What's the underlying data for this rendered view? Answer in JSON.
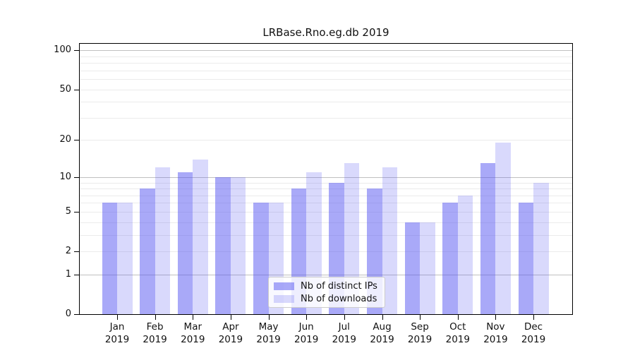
{
  "chart_data": {
    "type": "bar",
    "title": "LRBase.Rno.eg.db 2019",
    "categories": [
      "Jan",
      "Feb",
      "Mar",
      "Apr",
      "May",
      "Jun",
      "Jul",
      "Aug",
      "Sep",
      "Oct",
      "Nov",
      "Dec"
    ],
    "category_year": "2019",
    "series": [
      {
        "name": "Nb of distinct IPs",
        "color": "rgba(84,84,241,0.50)",
        "values": [
          6,
          8,
          11,
          10,
          6,
          8,
          9,
          8,
          4,
          6,
          13,
          6
        ]
      },
      {
        "name": "Nb of downloads",
        "color": "rgba(84,84,241,0.22)",
        "values": [
          6,
          12,
          14,
          10,
          6,
          11,
          13,
          12,
          4,
          7,
          19,
          9
        ]
      }
    ],
    "xlabel": "",
    "ylabel": "",
    "scale": "log1p",
    "ylim": [
      0,
      112
    ],
    "y_ticks": [
      0,
      1,
      2,
      5,
      10,
      20,
      50,
      100
    ],
    "gridlines": {
      "major": [
        1,
        10,
        100
      ],
      "minor": [
        2,
        3,
        4,
        5,
        6,
        7,
        8,
        9,
        20,
        30,
        40,
        50,
        60,
        70,
        80,
        90
      ]
    },
    "grid": "on",
    "legend_position": "lower-center"
  },
  "colors": {
    "bar_distinct_ips": "rgba(84,84,241,0.50)",
    "bar_downloads": "rgba(84,84,241,0.22)",
    "grid_major": "#c0c0c0",
    "grid_minor": "#ebebeb",
    "axis": "#000000",
    "text": "#111111",
    "legend_border": "#cccccc"
  }
}
